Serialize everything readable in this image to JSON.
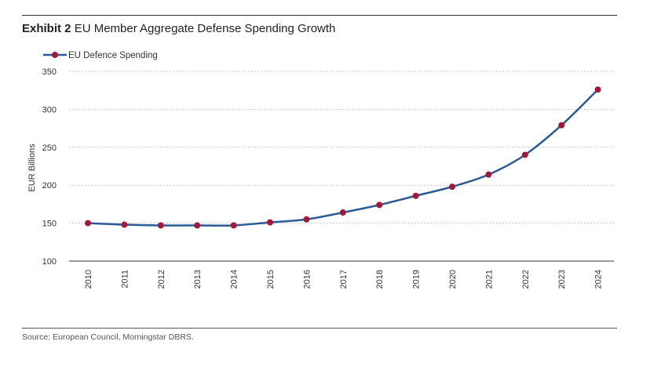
{
  "title": {
    "exhibit": "Exhibit 2",
    "text": "EU Member Aggregate Defense Spending Growth"
  },
  "source": "Source: European Council, Morningstar DBRS.",
  "colors": {
    "line": "#2a5a96",
    "marker": "#a3173a",
    "grid": "#c8c8c8",
    "axis": "#333333"
  },
  "chart_data": {
    "type": "line",
    "title": "EU Member Aggregate Defense Spending Growth",
    "xlabel": "",
    "ylabel": "EUR Billions",
    "ylim": [
      100,
      350
    ],
    "yticks": [
      100,
      150,
      200,
      250,
      300,
      350
    ],
    "grid": true,
    "legend_position": "top-left",
    "x": [
      "2010",
      "2011",
      "2012",
      "2013",
      "2014",
      "2015",
      "2016",
      "2017",
      "2018",
      "2019",
      "2020",
      "2021",
      "2022",
      "2023",
      "2024"
    ],
    "series": [
      {
        "name": "EU Defence Spending",
        "values": [
          150,
          148,
          147,
          147,
          147,
          151,
          155,
          164,
          174,
          186,
          198,
          214,
          240,
          279,
          326
        ]
      }
    ]
  }
}
